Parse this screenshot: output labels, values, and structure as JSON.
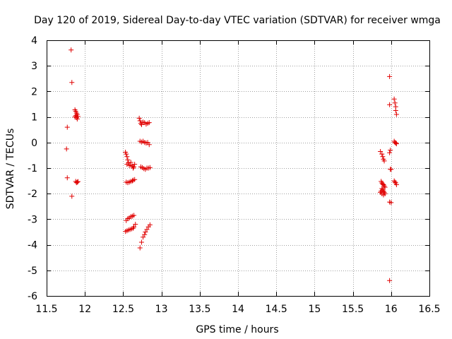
{
  "chart_data": {
    "type": "scatter",
    "title": "Day 120 of 2019, Sidereal Day-to-day VTEC variation (SDTVAR) for receiver wmga",
    "xlabel": "GPS time / hours",
    "ylabel": "SDTVAR / TECUs",
    "xlim": [
      11.5,
      16.5
    ],
    "ylim": [
      -6,
      4
    ],
    "xticks": [
      11.5,
      12,
      12.5,
      13,
      13.5,
      14,
      14.5,
      15,
      15.5,
      16,
      16.5
    ],
    "xtick_labels": [
      "11.5",
      "12",
      "12.5",
      "13",
      "13.5",
      "14",
      "14.5",
      "15",
      "15.5",
      "16",
      "16.5"
    ],
    "yticks": [
      4,
      3,
      2,
      1,
      0,
      -1,
      -2,
      -3,
      -4,
      -5,
      -6
    ],
    "ytick_labels": [
      "4",
      "3",
      "2",
      "1",
      "0",
      "-1",
      "-2",
      "-3",
      "-4",
      "-5",
      "-6"
    ],
    "grid": true,
    "marker": "+",
    "marker_color": "#e00000",
    "series": [
      {
        "name": "SDTVAR",
        "points": [
          [
            11.82,
            3.62
          ],
          [
            11.83,
            2.35
          ],
          [
            11.77,
            0.6
          ],
          [
            11.76,
            -0.25
          ],
          [
            11.77,
            -1.38
          ],
          [
            11.83,
            -2.1
          ],
          [
            11.87,
            1.28
          ],
          [
            11.88,
            1.22
          ],
          [
            11.89,
            1.15
          ],
          [
            11.88,
            1.05
          ],
          [
            11.9,
            1.1
          ],
          [
            11.89,
            0.98
          ],
          [
            11.9,
            0.92
          ],
          [
            11.91,
            1.02
          ],
          [
            11.87,
            1.0
          ],
          [
            11.88,
            -1.52
          ],
          [
            11.89,
            -1.57
          ],
          [
            11.9,
            -1.55
          ],
          [
            11.91,
            -1.53
          ],
          [
            12.53,
            -0.38
          ],
          [
            12.54,
            -0.45
          ],
          [
            12.55,
            -0.55
          ],
          [
            12.56,
            -0.68
          ],
          [
            12.55,
            -0.85
          ],
          [
            12.57,
            -0.8
          ],
          [
            12.58,
            -0.9
          ],
          [
            12.6,
            -0.88
          ],
          [
            12.62,
            -0.92
          ],
          [
            12.63,
            -1.0
          ],
          [
            12.64,
            -0.95
          ],
          [
            12.65,
            -0.85
          ],
          [
            12.6,
            -0.78
          ],
          [
            12.54,
            -1.55
          ],
          [
            12.56,
            -1.57
          ],
          [
            12.58,
            -1.55
          ],
          [
            12.6,
            -1.52
          ],
          [
            12.62,
            -1.5
          ],
          [
            12.63,
            -1.47
          ],
          [
            12.65,
            -1.45
          ],
          [
            12.54,
            -3.05
          ],
          [
            12.56,
            -2.98
          ],
          [
            12.58,
            -2.95
          ],
          [
            12.6,
            -2.9
          ],
          [
            12.62,
            -2.88
          ],
          [
            12.64,
            -2.85
          ],
          [
            12.53,
            -3.48
          ],
          [
            12.55,
            -3.45
          ],
          [
            12.57,
            -3.42
          ],
          [
            12.59,
            -3.4
          ],
          [
            12.61,
            -3.38
          ],
          [
            12.63,
            -3.35
          ],
          [
            12.64,
            -3.3
          ],
          [
            12.66,
            -3.2
          ],
          [
            12.71,
            0.95
          ],
          [
            12.72,
            0.85
          ],
          [
            12.73,
            0.75
          ],
          [
            12.74,
            0.7
          ],
          [
            12.76,
            0.8
          ],
          [
            12.78,
            0.78
          ],
          [
            12.8,
            0.72
          ],
          [
            12.82,
            0.75
          ],
          [
            12.84,
            0.78
          ],
          [
            12.72,
            0.05
          ],
          [
            12.74,
            0.02
          ],
          [
            12.76,
            0.05
          ],
          [
            12.78,
            0.0
          ],
          [
            12.8,
            -0.02
          ],
          [
            12.82,
            0.0
          ],
          [
            12.84,
            -0.08
          ],
          [
            12.73,
            -0.95
          ],
          [
            12.75,
            -0.98
          ],
          [
            12.77,
            -1.02
          ],
          [
            12.79,
            -1.05
          ],
          [
            12.81,
            -1.0
          ],
          [
            12.83,
            -1.0
          ],
          [
            12.85,
            -0.98
          ],
          [
            12.72,
            -4.12
          ],
          [
            12.74,
            -3.9
          ],
          [
            12.76,
            -3.7
          ],
          [
            12.78,
            -3.6
          ],
          [
            12.79,
            -3.5
          ],
          [
            12.81,
            -3.4
          ],
          [
            12.83,
            -3.3
          ],
          [
            12.85,
            -3.22
          ],
          [
            15.86,
            -0.35
          ],
          [
            15.88,
            -0.45
          ],
          [
            15.89,
            -0.55
          ],
          [
            15.9,
            -0.65
          ],
          [
            15.91,
            -0.72
          ],
          [
            15.87,
            -1.52
          ],
          [
            15.88,
            -1.58
          ],
          [
            15.89,
            -1.62
          ],
          [
            15.9,
            -1.65
          ],
          [
            15.91,
            -1.7
          ],
          [
            15.92,
            -1.75
          ],
          [
            15.88,
            -1.8
          ],
          [
            15.89,
            -1.85
          ],
          [
            15.9,
            -1.9
          ],
          [
            15.91,
            -1.95
          ],
          [
            15.92,
            -2.0
          ],
          [
            15.86,
            -1.95
          ],
          [
            15.87,
            -1.9
          ],
          [
            15.88,
            -2.0
          ],
          [
            15.9,
            -2.05
          ],
          [
            15.98,
            2.58
          ],
          [
            15.98,
            1.48
          ],
          [
            15.99,
            -0.3
          ],
          [
            15.98,
            -0.4
          ],
          [
            15.99,
            -1.05
          ],
          [
            16.0,
            -1.05
          ],
          [
            15.98,
            -2.33
          ],
          [
            16.0,
            -2.35
          ],
          [
            15.98,
            -5.4
          ],
          [
            16.04,
            1.7
          ],
          [
            16.05,
            1.55
          ],
          [
            16.06,
            1.4
          ],
          [
            16.06,
            1.25
          ],
          [
            16.07,
            1.1
          ],
          [
            16.04,
            0.05
          ],
          [
            16.05,
            0.0
          ],
          [
            16.06,
            -0.02
          ],
          [
            16.07,
            -0.05
          ],
          [
            16.04,
            -1.5
          ],
          [
            16.05,
            -1.55
          ],
          [
            16.06,
            -1.58
          ],
          [
            16.07,
            -1.65
          ]
        ]
      }
    ]
  }
}
